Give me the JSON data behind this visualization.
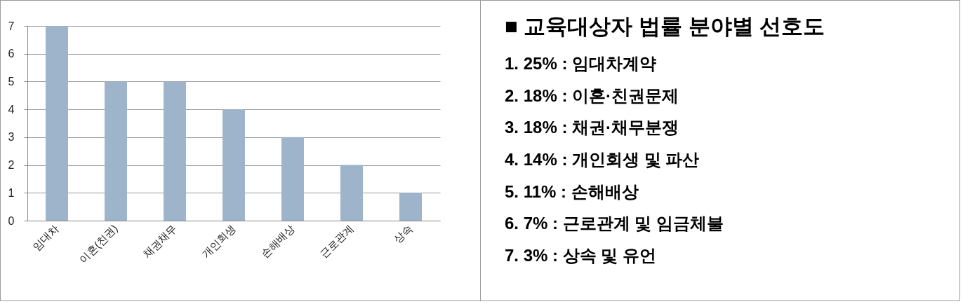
{
  "chart_data": [
    {
      "type": "bar",
      "categories": [
        "임대차",
        "이혼(친권)",
        "채권채무",
        "개인회생",
        "손해배상",
        "근로관계",
        "상속"
      ],
      "values": [
        7,
        5,
        5,
        4,
        3,
        2,
        1
      ],
      "color": "#9db4ca",
      "ylim": [
        0,
        7
      ],
      "yticks": [
        0,
        1,
        2,
        3,
        4,
        5,
        6,
        7
      ],
      "grid": "y"
    },
    {
      "type": "other",
      "title": "■ 교육대상자 법률 분야별 선호도",
      "annotations": [
        "1. 25% : 임대차계약",
        "2. 18% : 이혼·친권문제",
        "3. 18% : 채권·채무분쟁",
        "4. 14% : 개인회생 및 파산",
        "5. 11% : 손해배상",
        "6.   7% : 근로관계 및 임금체불",
        "7.   3% : 상속 및 유언"
      ]
    }
  ]
}
